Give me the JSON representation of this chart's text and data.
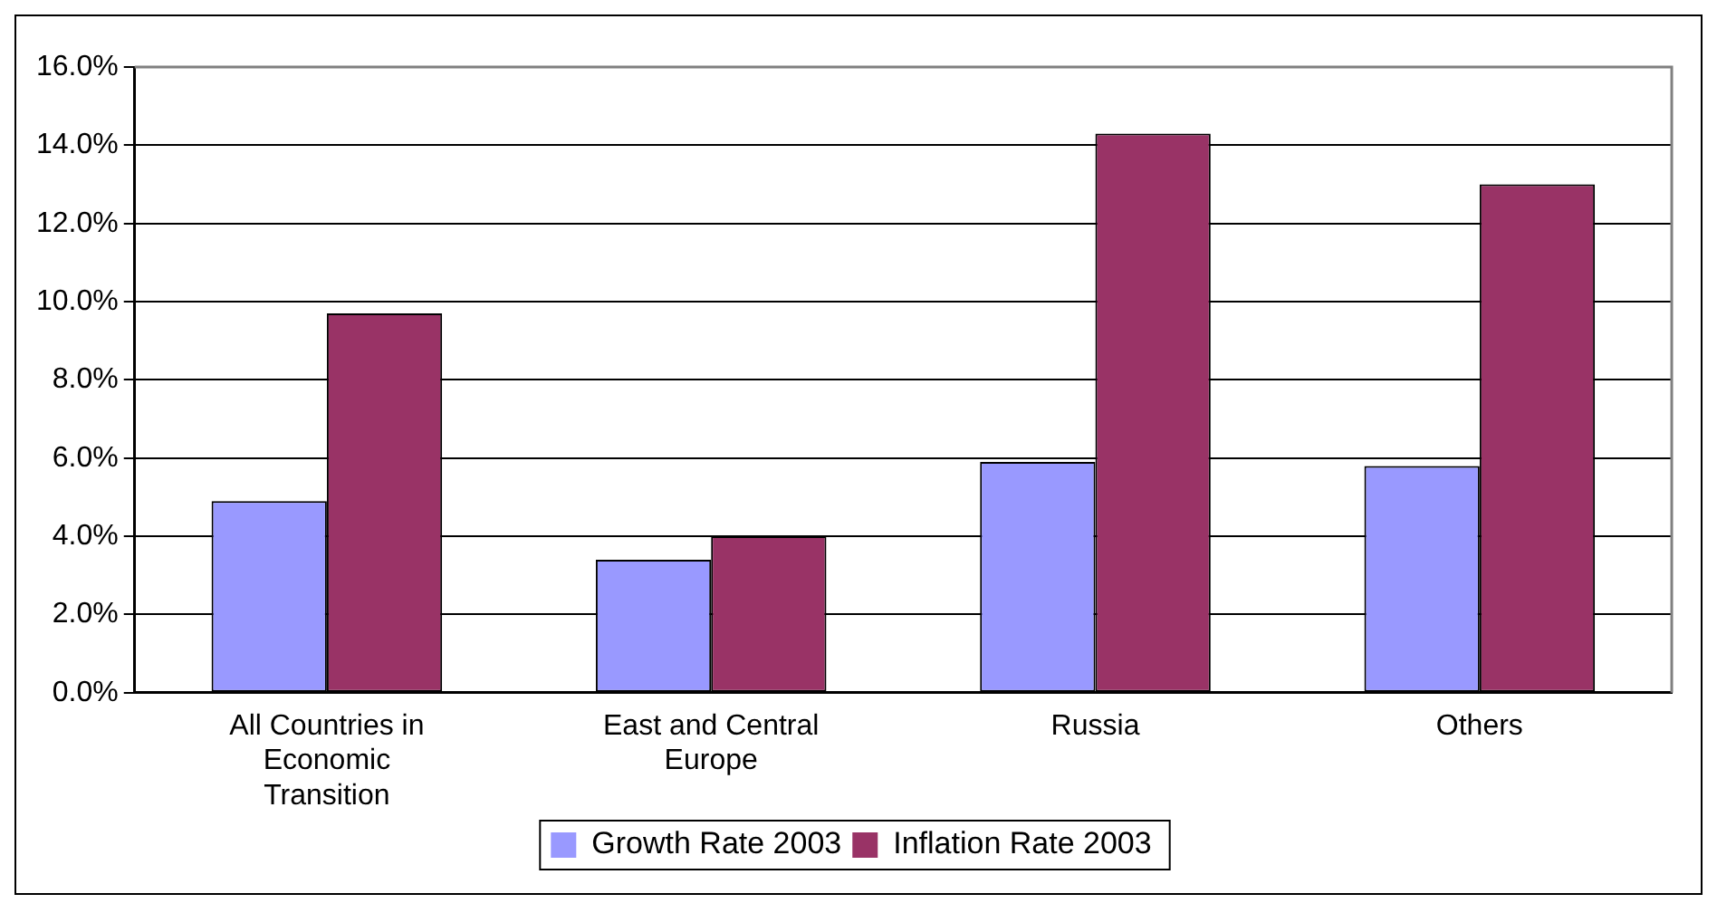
{
  "chart_data": {
    "type": "bar",
    "categories": [
      "All Countries in Economic Transition",
      "East and Central Europe",
      "Russia",
      "Others"
    ],
    "series": [
      {
        "name": "Growth Rate 2003",
        "color": "#9999ff",
        "values": [
          4.9,
          3.4,
          5.9,
          5.8
        ]
      },
      {
        "name": "Inflation Rate 2003",
        "color": "#993366",
        "values": [
          9.7,
          4.0,
          14.3,
          13.0
        ]
      }
    ],
    "ylim": [
      0,
      16
    ],
    "yticks": [
      {
        "value": 0,
        "label": "0.0%"
      },
      {
        "value": 2,
        "label": "2.0%"
      },
      {
        "value": 4,
        "label": "4.0%"
      },
      {
        "value": 6,
        "label": "6.0%"
      },
      {
        "value": 8,
        "label": "8.0%"
      },
      {
        "value": 10,
        "label": "10.0%"
      },
      {
        "value": 12,
        "label": "12.0%"
      },
      {
        "value": 14,
        "label": "14.0%"
      },
      {
        "value": 16,
        "label": "16.0%"
      }
    ],
    "grid": "y",
    "legend": "bottom"
  }
}
